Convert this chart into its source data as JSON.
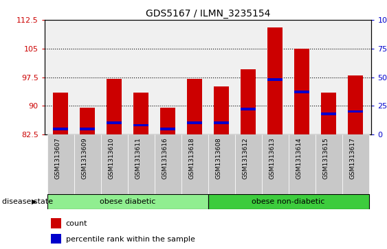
{
  "title": "GDS5167 / ILMN_3235154",
  "samples": [
    "GSM1313607",
    "GSM1313609",
    "GSM1313610",
    "GSM1313611",
    "GSM1313616",
    "GSM1313618",
    "GSM1313608",
    "GSM1313612",
    "GSM1313613",
    "GSM1313614",
    "GSM1313615",
    "GSM1313617"
  ],
  "counts": [
    93.5,
    89.5,
    97.0,
    93.5,
    89.5,
    97.0,
    95.0,
    99.5,
    110.5,
    105.0,
    93.5,
    98.0
  ],
  "percentile_ranks": [
    5,
    5,
    10,
    8,
    5,
    10,
    10,
    22,
    48,
    37,
    18,
    20
  ],
  "ymin": 82.5,
  "ymax": 112.5,
  "yticks": [
    82.5,
    90,
    97.5,
    105,
    112.5
  ],
  "right_yticks": [
    0,
    25,
    50,
    75,
    100
  ],
  "disease_groups": [
    {
      "label": "obese diabetic",
      "start": 0,
      "end": 6,
      "color": "#90ee90"
    },
    {
      "label": "obese non-diabetic",
      "start": 6,
      "end": 12,
      "color": "#3dcc3d"
    }
  ],
  "bar_color": "#cc0000",
  "percentile_color": "#0000cc",
  "bar_width": 0.55,
  "left_label_color": "#cc0000",
  "right_label_color": "#0000cc",
  "disease_state_label": "disease state",
  "legend_count_label": "count",
  "legend_percentile_label": "percentile rank within the sample",
  "xtick_bg": "#c8c8c8",
  "plot_bg": "#f0f0f0"
}
